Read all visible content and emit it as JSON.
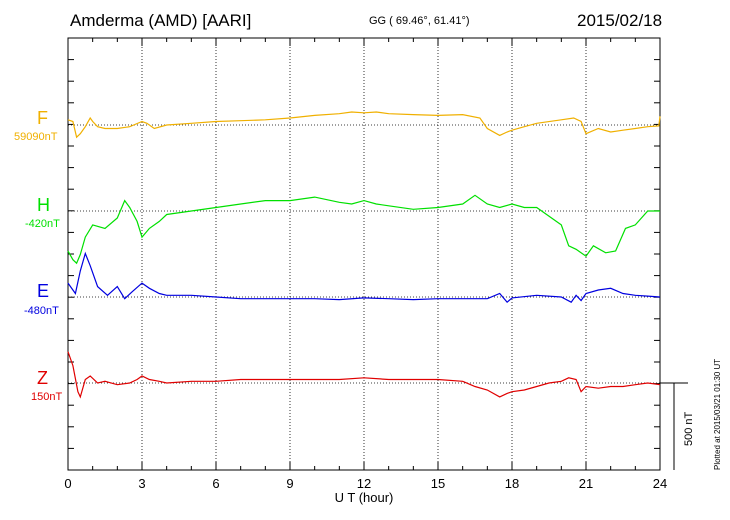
{
  "header": {
    "station": "Amderma (AMD)  [AARI]",
    "coords": "GG ( 69.46°,  61.41°)",
    "date": "2015/02/18"
  },
  "plotted_note": "Plotted at 2015/03/21 01:30 UT",
  "scale_label": "500 nT",
  "colors": {
    "F": "#f0b000",
    "H": "#00e000",
    "E": "#0000e0",
    "Z": "#e00000"
  },
  "chart_data": {
    "type": "line",
    "xlabel": "U T (hour)",
    "xlim": [
      0,
      24
    ],
    "xticks": [
      "0",
      "3",
      "6",
      "9",
      "12",
      "15",
      "18",
      "21",
      "24"
    ],
    "grid": true,
    "channels": [
      {
        "letter": "F",
        "baseline": "59090nT"
      },
      {
        "letter": "H",
        "baseline": "-420nT"
      },
      {
        "letter": "E",
        "baseline": "-480nT"
      },
      {
        "letter": "Z",
        "baseline": "150nT"
      }
    ],
    "series": [
      {
        "name": "F",
        "x": [
          0,
          0.2,
          0.35,
          0.5,
          0.7,
          0.9,
          1.0,
          1.2,
          1.5,
          2.0,
          2.5,
          3.0,
          3.2,
          3.5,
          4.0,
          5.0,
          6.0,
          7.0,
          8.0,
          9.0,
          10.0,
          11.0,
          11.5,
          12.0,
          12.5,
          13.0,
          14.0,
          15.0,
          16.0,
          16.7,
          17.0,
          17.5,
          17.8,
          18.0,
          18.5,
          19.0,
          20.0,
          20.5,
          20.8,
          21.0,
          21.5,
          22.0,
          22.5,
          23.0,
          23.5,
          23.95,
          24.0
        ],
        "y": [
          30,
          20,
          -70,
          -50,
          -10,
          40,
          20,
          -10,
          -20,
          -20,
          -10,
          20,
          10,
          -20,
          0,
          10,
          20,
          25,
          30,
          40,
          55,
          65,
          75,
          70,
          75,
          65,
          60,
          55,
          60,
          40,
          -20,
          -60,
          -40,
          -30,
          -10,
          10,
          30,
          40,
          20,
          -50,
          -20,
          -40,
          -30,
          -20,
          -10,
          -5,
          50
        ]
      },
      {
        "name": "H",
        "x": [
          0,
          0.2,
          0.35,
          0.5,
          0.7,
          1.0,
          1.5,
          2.0,
          2.3,
          2.5,
          2.8,
          3.0,
          3.3,
          3.7,
          4.0,
          5.0,
          6.0,
          7.0,
          8.0,
          9.0,
          10.0,
          11.0,
          11.5,
          12.0,
          12.5,
          13.0,
          14.0,
          15.0,
          16.0,
          16.5,
          17.0,
          17.5,
          18.0,
          18.5,
          19.0,
          20.0,
          20.3,
          20.6,
          21.0,
          21.3,
          21.8,
          22.2,
          22.6,
          23.0,
          23.5,
          24.0
        ],
        "y": [
          -230,
          -280,
          -300,
          -250,
          -150,
          -80,
          -100,
          -40,
          60,
          20,
          -60,
          -150,
          -100,
          -60,
          -20,
          0,
          20,
          40,
          60,
          60,
          80,
          50,
          40,
          60,
          40,
          30,
          10,
          20,
          40,
          90,
          40,
          20,
          40,
          20,
          20,
          -80,
          -200,
          -220,
          -260,
          -200,
          -240,
          -230,
          -100,
          -80,
          0,
          0
        ]
      },
      {
        "name": "E",
        "x": [
          0,
          0.3,
          0.5,
          0.7,
          0.9,
          1.2,
          1.6,
          2.0,
          2.3,
          2.6,
          3.0,
          3.3,
          3.7,
          4.0,
          5.0,
          6.0,
          7.0,
          8.0,
          9.0,
          10.0,
          11.0,
          12.0,
          13.0,
          14.0,
          15.0,
          16.0,
          17.0,
          17.5,
          17.8,
          18.0,
          19.0,
          20.0,
          20.4,
          20.6,
          20.8,
          21.0,
          21.5,
          22.0,
          22.5,
          23.0,
          23.5,
          24.0
        ],
        "y": [
          80,
          20,
          150,
          250,
          180,
          60,
          10,
          60,
          -10,
          30,
          80,
          50,
          20,
          10,
          10,
          0,
          -10,
          -10,
          -10,
          -10,
          -15,
          -5,
          -10,
          -15,
          -10,
          -10,
          -10,
          20,
          -30,
          -5,
          10,
          0,
          -30,
          10,
          -20,
          20,
          40,
          50,
          20,
          10,
          5,
          0
        ]
      },
      {
        "name": "Z",
        "x": [
          0,
          0.2,
          0.4,
          0.5,
          0.7,
          0.9,
          1.2,
          1.5,
          2.0,
          2.5,
          2.8,
          3.0,
          3.3,
          3.7,
          4.0,
          5.0,
          6.0,
          7.0,
          8.0,
          9.0,
          10.0,
          11.0,
          12.0,
          13.0,
          14.0,
          15.0,
          16.0,
          16.5,
          17.0,
          17.5,
          17.8,
          18.0,
          18.5,
          19.0,
          19.5,
          20.0,
          20.3,
          20.6,
          20.8,
          21.0,
          21.5,
          22.0,
          22.5,
          23.0,
          23.5,
          24.0
        ],
        "y": [
          180,
          100,
          -50,
          -80,
          20,
          40,
          0,
          10,
          -10,
          0,
          20,
          40,
          20,
          10,
          0,
          10,
          10,
          20,
          20,
          20,
          20,
          20,
          30,
          20,
          20,
          20,
          10,
          -20,
          -40,
          -80,
          -60,
          -50,
          -40,
          -20,
          0,
          10,
          30,
          20,
          -50,
          -20,
          -30,
          -20,
          -20,
          -10,
          0,
          -10
        ]
      }
    ]
  }
}
